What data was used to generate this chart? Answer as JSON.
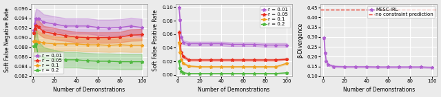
{
  "x_vals": [
    1,
    2,
    3,
    5,
    10,
    20,
    30,
    40,
    50,
    60,
    70,
    80,
    90,
    100
  ],
  "plot1": {
    "ylabel": "Soft False Negative Rate",
    "xlabel": "Number of Demonstrations",
    "ylim": [
      0.082,
      0.097
    ],
    "yticks": [
      0.082,
      0.084,
      0.086,
      0.088,
      0.09,
      0.092,
      0.094,
      0.096
    ],
    "series": [
      {
        "label": "r = 0.01",
        "color": "#b060d0",
        "mean": [
          0.0915,
          0.0928,
          0.094,
          0.094,
          0.0932,
          0.0928,
          0.0924,
          0.0924,
          0.0924,
          0.0921,
          0.092,
          0.0921,
          0.0924,
          0.0921
        ],
        "std": [
          0.002,
          0.0022,
          0.002,
          0.0018,
          0.0016,
          0.0016,
          0.0016,
          0.0016,
          0.0016,
          0.0016,
          0.0017,
          0.0017,
          0.0017,
          0.0018
        ]
      },
      {
        "label": "r = 0.05",
        "color": "#e83020",
        "mean": [
          0.091,
          0.0918,
          0.0925,
          0.0922,
          0.0912,
          0.0908,
          0.0904,
          0.0901,
          0.09,
          0.09,
          0.09,
          0.0901,
          0.0905,
          0.0906
        ],
        "std": [
          0.0018,
          0.0016,
          0.0015,
          0.0014,
          0.0012,
          0.0012,
          0.0011,
          0.0011,
          0.0011,
          0.0011,
          0.0011,
          0.0011,
          0.0012,
          0.0012
        ]
      },
      {
        "label": "r = 0.1",
        "color": "#f0a020",
        "mean": [
          0.0892,
          0.0893,
          0.0893,
          0.0891,
          0.0889,
          0.0887,
          0.0887,
          0.0887,
          0.0885,
          0.0885,
          0.0884,
          0.0885,
          0.0884,
          0.0884
        ],
        "std": [
          0.0028,
          0.0026,
          0.0024,
          0.0022,
          0.0018,
          0.0015,
          0.0014,
          0.0014,
          0.0014,
          0.0014,
          0.0014,
          0.0014,
          0.0014,
          0.0014
        ]
      },
      {
        "label": "r = 0.2",
        "color": "#50b840",
        "mean": [
          0.0882,
          0.0882,
          0.0886,
          0.0862,
          0.0858,
          0.0856,
          0.0854,
          0.0854,
          0.0852,
          0.0851,
          0.0851,
          0.085,
          0.085,
          0.085
        ],
        "std": [
          0.0035,
          0.0035,
          0.0035,
          0.003,
          0.0022,
          0.0018,
          0.0016,
          0.0016,
          0.0016,
          0.0016,
          0.0016,
          0.0016,
          0.0016,
          0.0016
        ]
      }
    ]
  },
  "plot2": {
    "ylabel": "Soft False Positive Rate",
    "xlabel": "Number of Demonstrations",
    "ylim": [
      -0.002,
      0.105
    ],
    "yticks": [
      0.0,
      0.02,
      0.04,
      0.06,
      0.08,
      0.1
    ],
    "series": [
      {
        "label": "r = 0.01",
        "color": "#b060d0",
        "mean": [
          0.099,
          0.081,
          0.056,
          0.048,
          0.046,
          0.046,
          0.046,
          0.046,
          0.045,
          0.045,
          0.045,
          0.044,
          0.044,
          0.044
        ],
        "std": [
          0.004,
          0.004,
          0.003,
          0.003,
          0.003,
          0.003,
          0.003,
          0.003,
          0.003,
          0.003,
          0.003,
          0.003,
          0.003,
          0.003
        ]
      },
      {
        "label": "r = 0.05",
        "color": "#e83020",
        "mean": [
          0.063,
          0.047,
          0.033,
          0.027,
          0.022,
          0.022,
          0.022,
          0.022,
          0.022,
          0.022,
          0.022,
          0.022,
          0.022,
          0.023
        ],
        "std": [
          0.003,
          0.003,
          0.002,
          0.002,
          0.0015,
          0.0015,
          0.0015,
          0.0015,
          0.0015,
          0.0015,
          0.0015,
          0.0015,
          0.0015,
          0.0015
        ]
      },
      {
        "label": "r = 0.1",
        "color": "#f0a020",
        "mean": [
          0.048,
          0.033,
          0.022,
          0.017,
          0.013,
          0.012,
          0.012,
          0.012,
          0.012,
          0.012,
          0.012,
          0.012,
          0.012,
          0.017
        ],
        "std": [
          0.002,
          0.002,
          0.0015,
          0.001,
          0.001,
          0.001,
          0.001,
          0.001,
          0.001,
          0.001,
          0.001,
          0.001,
          0.001,
          0.001
        ]
      },
      {
        "label": "r = 0.2",
        "color": "#50b840",
        "mean": [
          0.02,
          0.01,
          0.005,
          0.003,
          0.002,
          0.002,
          0.002,
          0.002,
          0.002,
          0.002,
          0.002,
          0.002,
          0.002,
          0.003
        ],
        "std": [
          0.002,
          0.001,
          0.0008,
          0.0005,
          0.0004,
          0.0004,
          0.0004,
          0.0004,
          0.0004,
          0.0004,
          0.0004,
          0.0004,
          0.0004,
          0.0004
        ]
      }
    ]
  },
  "plot3": {
    "ylabel": "β-Divergence",
    "xlabel": "Number of Demonstrations",
    "ylim": [
      0.1,
      0.47
    ],
    "yticks": [
      0.1,
      0.15,
      0.2,
      0.25,
      0.3,
      0.35,
      0.4,
      0.45
    ],
    "hline_val": 0.44,
    "hline_color": "#e83020",
    "hline_label": "no constraint prediction",
    "series": [
      {
        "label": "MESC-IRL",
        "color": "#b060d0",
        "mean": [
          0.295,
          0.22,
          0.178,
          0.158,
          0.15,
          0.148,
          0.148,
          0.148,
          0.147,
          0.147,
          0.147,
          0.147,
          0.147,
          0.145
        ],
        "std": [
          0.012,
          0.01,
          0.008,
          0.006,
          0.005,
          0.004,
          0.004,
          0.004,
          0.004,
          0.004,
          0.004,
          0.004,
          0.004,
          0.004
        ]
      }
    ]
  },
  "marker": "*",
  "markersize": 3.5,
  "linewidth": 1.0,
  "alpha_fill": 0.3,
  "legend_fontsize": 5.0,
  "tick_fontsize": 5.0,
  "label_fontsize": 5.5,
  "background_color": "#ebebeb"
}
